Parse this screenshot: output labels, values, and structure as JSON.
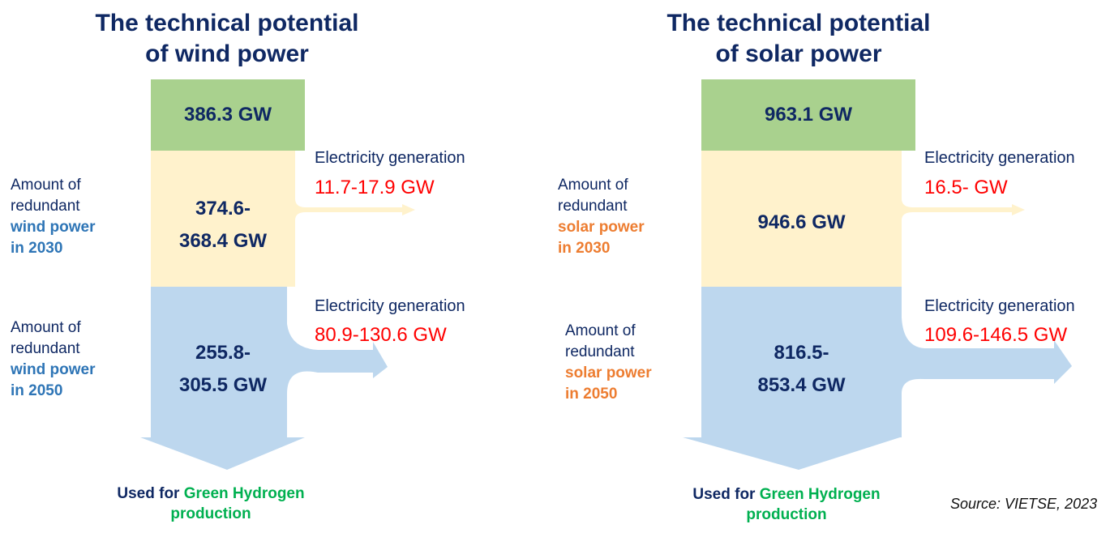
{
  "colors": {
    "title": "#0f2863",
    "green_block": "#a9d18e",
    "yellow_block": "#fff2cc",
    "blue_block": "#bdd7ee",
    "red_value": "#ff0000",
    "wind_accent": "#2e75b6",
    "solar_accent": "#ed7d31",
    "hydrogen_green": "#00b050"
  },
  "wind": {
    "title_line1": "The technical potential",
    "title_line2": "of wind power",
    "total": "386.3 GW",
    "redundant_2030_line1": "374.6-",
    "redundant_2030_line2": "368.4 GW",
    "redundant_2050_line1": "255.8-",
    "redundant_2050_line2": "305.5 GW",
    "label_2030": {
      "line1": "Amount of",
      "line2": "redundant",
      "highlight1": "wind power",
      "highlight2": "in 2030"
    },
    "label_2050": {
      "line1": "Amount of",
      "line2": "redundant",
      "highlight1": "wind power",
      "highlight2": "in 2050"
    },
    "gen_2030_label": "Electricity generation",
    "gen_2030_value": "11.7-17.9 GW",
    "gen_2050_label": "Electricity generation",
    "gen_2050_value": "80.9-130.6 GW",
    "used_prefix": "Used for",
    "used_highlight": "Green Hydrogen",
    "used_suffix": "production"
  },
  "solar": {
    "title_line1": "The technical potential",
    "title_line2": "of solar power",
    "total": "963.1 GW",
    "redundant_2030": "946.6 GW",
    "redundant_2050_line1": "816.5-",
    "redundant_2050_line2": "853.4 GW",
    "label_2030": {
      "line1": "Amount of",
      "line2": "redundant",
      "highlight1": "solar power",
      "highlight2": "in 2030"
    },
    "label_2050": {
      "line1": "Amount of",
      "line2": "redundant",
      "highlight1": "solar power",
      "highlight2": "in 2050"
    },
    "gen_2030_label": "Electricity generation",
    "gen_2030_value": "16.5- GW",
    "gen_2050_label": "Electricity generation",
    "gen_2050_value": "109.6-146.5 GW",
    "used_prefix": "Used for",
    "used_highlight": "Green Hydrogen",
    "used_suffix": "production"
  },
  "source": "Source: VIETSE, 2023"
}
